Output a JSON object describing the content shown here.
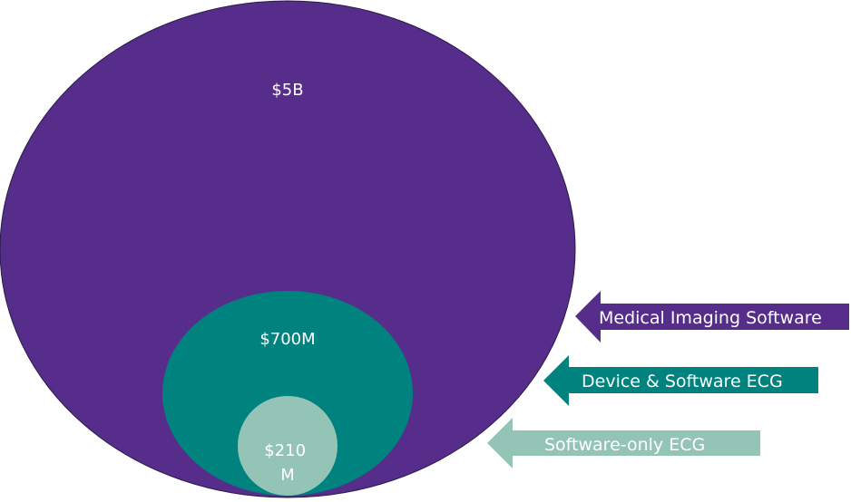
{
  "chart_data": {
    "type": "nested-bubble",
    "title": "",
    "series": [
      {
        "name": "Medical Imaging Software",
        "value_label": "$5B",
        "value_label_lines": [
          "$5B"
        ],
        "value": 5000,
        "color": "#562d8a"
      },
      {
        "name": "Device & Software ECG",
        "value_label": "$700M",
        "value_label_lines": [
          "$700M"
        ],
        "value": 700,
        "color": "#00827f"
      },
      {
        "name": "Software-only ECG",
        "value_label": "$210 M",
        "value_label_lines": [
          "$210",
          "M"
        ],
        "value": 210,
        "color": "#93c4b6"
      }
    ]
  }
}
